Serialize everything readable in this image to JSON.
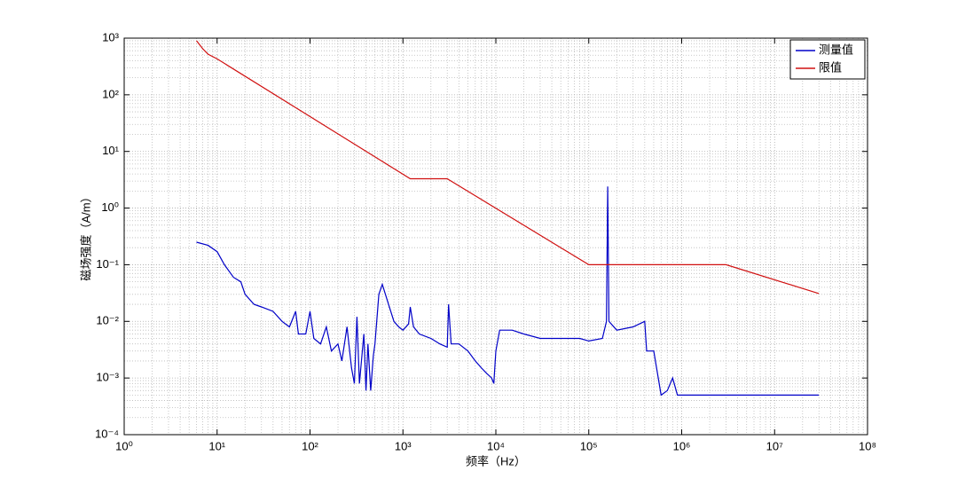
{
  "chart_data": {
    "type": "line",
    "x_label": "频率（Hz）",
    "y_label": "磁场强度（A/m）",
    "xscale": "log",
    "yscale": "log",
    "grid": true,
    "legend": "upper right",
    "xlim": [
      1,
      100000000
    ],
    "ylim": [
      0.0001,
      1000
    ],
    "xticks": [
      {
        "value": 1,
        "label": "10⁰"
      },
      {
        "value": 10,
        "label": "10¹"
      },
      {
        "value": 100,
        "label": "10²"
      },
      {
        "value": 1000,
        "label": "10³"
      },
      {
        "value": 10000,
        "label": "10⁴"
      },
      {
        "value": 100000,
        "label": "10⁵"
      },
      {
        "value": 1000000,
        "label": "10⁶"
      },
      {
        "value": 10000000,
        "label": "10⁷"
      },
      {
        "value": 100000000,
        "label": "10⁸"
      }
    ],
    "yticks": [
      {
        "value": 0.0001,
        "label": "10⁻⁴"
      },
      {
        "value": 0.001,
        "label": "10⁻³"
      },
      {
        "value": 0.01,
        "label": "10⁻²"
      },
      {
        "value": 0.1,
        "label": "10⁻¹"
      },
      {
        "value": 1,
        "label": "10⁰"
      },
      {
        "value": 10,
        "label": "10¹"
      },
      {
        "value": 100,
        "label": "10²"
      },
      {
        "value": 1000,
        "label": "10³"
      }
    ],
    "series": [
      {
        "name": "测量值",
        "color": "#0000c8",
        "x": [
          6,
          8,
          10,
          12,
          15,
          18,
          20,
          25,
          30,
          40,
          50,
          60,
          70,
          75,
          90,
          100,
          110,
          130,
          150,
          170,
          200,
          220,
          250,
          280,
          300,
          320,
          340,
          380,
          400,
          420,
          450,
          480,
          500,
          550,
          600,
          700,
          800,
          900,
          1000,
          1150,
          1200,
          1300,
          1500,
          2000,
          2500,
          3000,
          3100,
          3300,
          4000,
          5000,
          6000,
          7000,
          8000,
          9000,
          9500,
          10000,
          11000,
          15000,
          20000,
          30000,
          50000,
          80000,
          100000,
          140000,
          155000,
          160000,
          165000,
          200000,
          300000,
          400000,
          420000,
          500000,
          600000,
          700000,
          800000,
          900000,
          1000000,
          3000000,
          10000000,
          30000000
        ],
        "values": [
          0.25,
          0.22,
          0.17,
          0.1,
          0.06,
          0.05,
          0.03,
          0.02,
          0.018,
          0.015,
          0.01,
          0.008,
          0.015,
          0.006,
          0.006,
          0.015,
          0.005,
          0.004,
          0.008,
          0.003,
          0.004,
          0.002,
          0.008,
          0.0015,
          0.0008,
          0.012,
          0.0008,
          0.006,
          0.0006,
          0.004,
          0.0006,
          0.0025,
          0.004,
          0.03,
          0.045,
          0.02,
          0.01,
          0.008,
          0.007,
          0.009,
          0.018,
          0.008,
          0.006,
          0.005,
          0.004,
          0.0035,
          0.02,
          0.004,
          0.004,
          0.003,
          0.002,
          0.0015,
          0.0012,
          0.001,
          0.0008,
          0.003,
          0.007,
          0.007,
          0.006,
          0.005,
          0.005,
          0.005,
          0.0045,
          0.005,
          0.01,
          2.4,
          0.01,
          0.007,
          0.008,
          0.01,
          0.003,
          0.003,
          0.0005,
          0.0006,
          0.001,
          0.0005,
          0.0005,
          0.0005,
          0.0005,
          0.0005
        ]
      },
      {
        "name": "限值",
        "color": "#d01010",
        "x": [
          6,
          7,
          8,
          10,
          1200,
          3000,
          100000,
          3000000,
          30000000
        ],
        "values": [
          900,
          650,
          520,
          430,
          3.3,
          3.3,
          0.1,
          0.1,
          0.031
        ]
      }
    ]
  }
}
